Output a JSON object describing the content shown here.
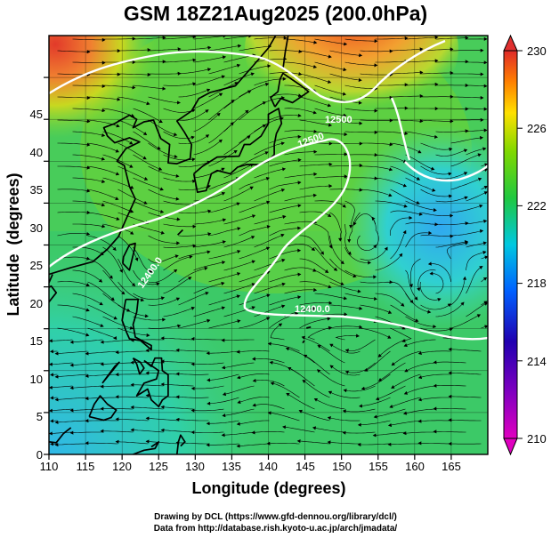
{
  "title": "GSM 18Z21Aug2025 (200.0hPa)",
  "chart_data": {
    "type": "heatmap",
    "title": "GSM 18Z21Aug2025 (200.0hPa)",
    "xlabel": "Longitude (degrees)",
    "ylabel": "Latitude  (degrees)",
    "xlim": [
      110,
      170
    ],
    "ylim": [
      0,
      50
    ],
    "x_ticks": [
      "110",
      "115",
      "120",
      "125",
      "130",
      "135",
      "140",
      "145",
      "150",
      "155",
      "160",
      "165"
    ],
    "y_ticks": [
      "0",
      "5",
      "10",
      "15",
      "20",
      "25",
      "30",
      "35",
      "40",
      "45"
    ],
    "colorbar": {
      "ticks": [
        "210",
        "214",
        "218",
        "222",
        "226",
        "230"
      ],
      "range": [
        210,
        230
      ],
      "colors": [
        "#e000c0",
        "#3000b0",
        "#0050ff",
        "#00c8d8",
        "#20c840",
        "#70d800",
        "#ffe000",
        "#ff8000",
        "#e03030"
      ]
    },
    "contour_labels": [
      "12400.0",
      "12500",
      "12500",
      "12400.0"
    ],
    "grid": true,
    "features": [
      "coastlines",
      "streamlines",
      "geopotential height contours"
    ]
  },
  "credits": {
    "line1": "Drawing by DCL (https://www.gfd-dennou.org/library/dcl/)",
    "line2": "Data from http://database.rish.kyoto-u.ac.jp/arch/jmadata/"
  }
}
